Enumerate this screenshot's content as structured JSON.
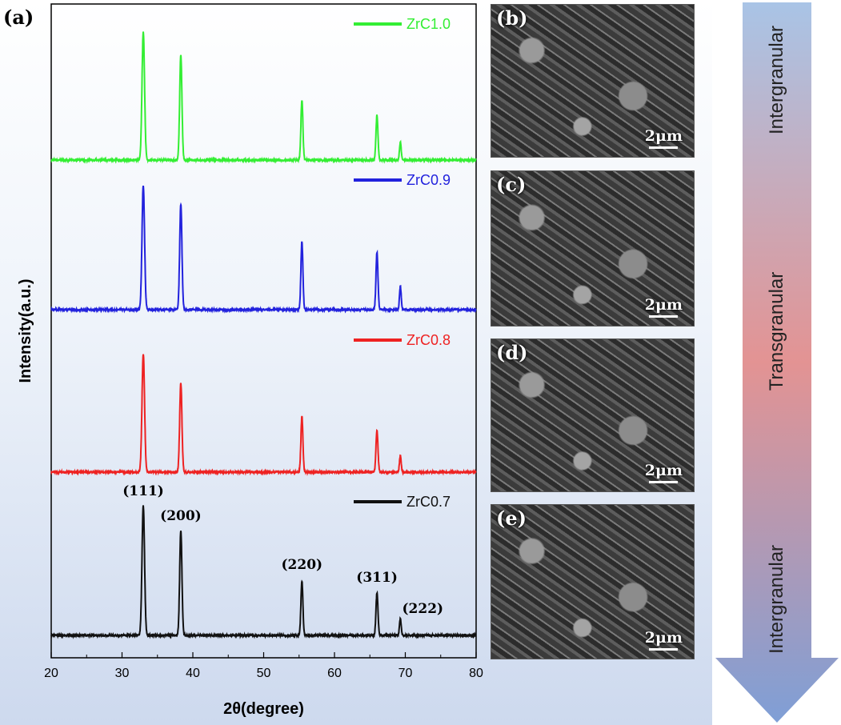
{
  "panel_label": "(a)",
  "chart_data": {
    "type": "line",
    "xlabel": "2θ(degree)",
    "ylabel": "Intensity(a.u.)",
    "xlim": [
      20,
      80
    ],
    "xticks": [
      20,
      30,
      40,
      50,
      60,
      70,
      80
    ],
    "grid": false,
    "legend": "inline labels above each trace",
    "series": [
      {
        "name": "ZrC1.0",
        "color": "#33ee33",
        "peaks": [
          [
            33.0,
            100
          ],
          [
            38.3,
            82
          ],
          [
            55.4,
            47
          ],
          [
            66.0,
            35
          ],
          [
            69.3,
            14
          ]
        ]
      },
      {
        "name": "ZrC0.9",
        "color": "#2222dd",
        "peaks": [
          [
            33.0,
            100
          ],
          [
            38.3,
            85
          ],
          [
            55.4,
            55
          ],
          [
            66.0,
            46
          ],
          [
            69.3,
            19
          ]
        ]
      },
      {
        "name": "ZrC0.8",
        "color": "#ee2222",
        "peaks": [
          [
            33.0,
            100
          ],
          [
            38.3,
            75
          ],
          [
            55.4,
            47
          ],
          [
            66.0,
            35
          ],
          [
            69.3,
            14
          ]
        ]
      },
      {
        "name": "ZrC0.7",
        "color": "#111111",
        "peaks": [
          [
            33.0,
            100
          ],
          [
            38.3,
            81
          ],
          [
            55.4,
            42
          ],
          [
            66.0,
            33
          ],
          [
            69.3,
            13
          ]
        ]
      }
    ],
    "annotations": [
      {
        "text": "(111)",
        "x": 33.0
      },
      {
        "text": "(200)",
        "x": 38.3
      },
      {
        "text": "(220)",
        "x": 55.4
      },
      {
        "text": "(311)",
        "x": 66.0
      },
      {
        "text": "(222)",
        "x": 69.3
      }
    ]
  },
  "sem_panels": [
    {
      "label": "(b)",
      "scale": "2μm"
    },
    {
      "label": "(c)",
      "scale": "2μm"
    },
    {
      "label": "(d)",
      "scale": "2μm"
    },
    {
      "label": "(e)",
      "scale": "2μm"
    }
  ],
  "fracture_modes": [
    "Intergranular",
    "Transgranular",
    "Intergranular"
  ],
  "colors": {
    "arrow_top": "#a9c4e6",
    "arrow_mid": "#e39393",
    "arrow_bottom": "#7f9fd6"
  }
}
